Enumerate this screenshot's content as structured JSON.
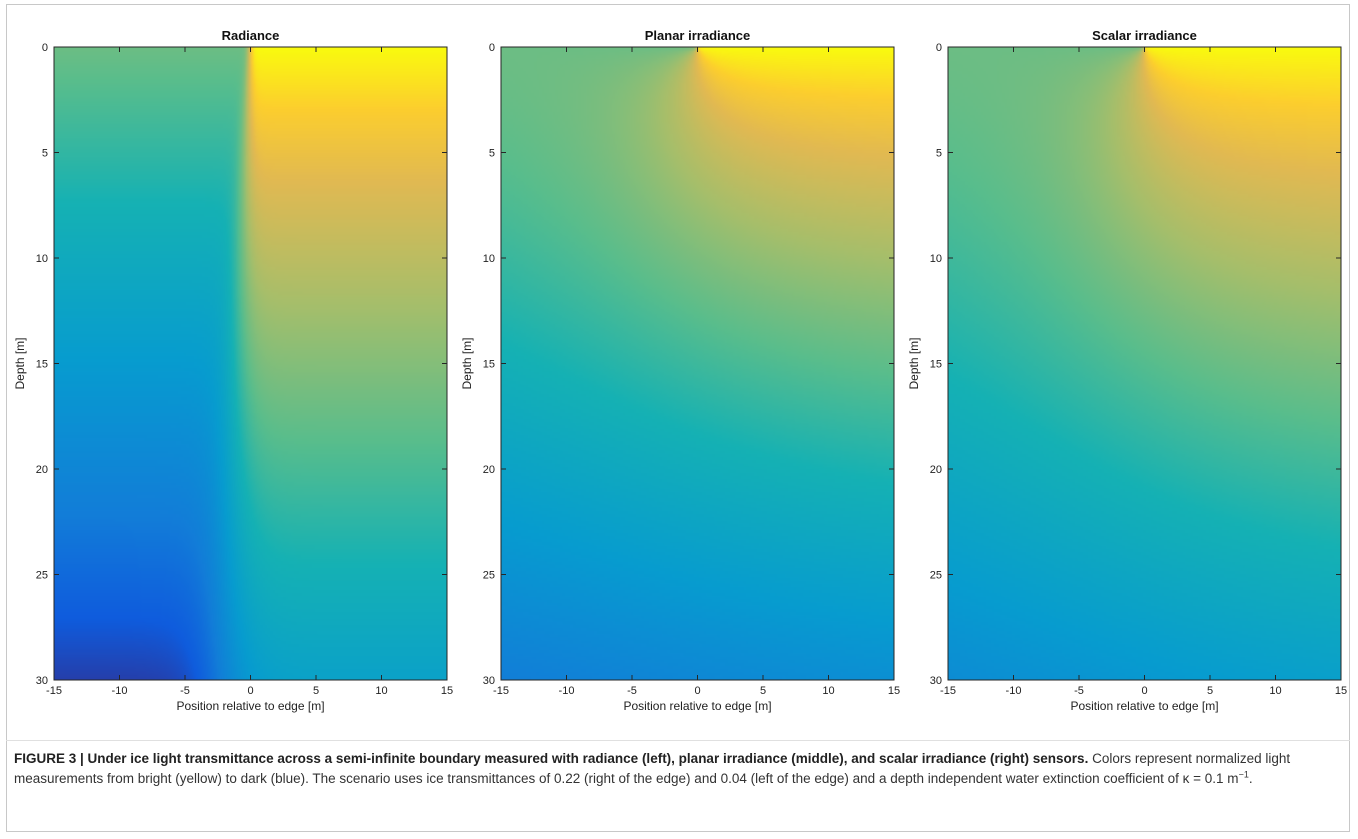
{
  "chart_data": [
    {
      "type": "heatmap",
      "title": "Radiance",
      "xlabel": "Position relative to edge [m]",
      "ylabel": "Depth [m]",
      "xlim": [
        -15,
        15
      ],
      "ylim": [
        30,
        0
      ],
      "x_ticks": [
        -15,
        -10,
        -5,
        0,
        5,
        10,
        15
      ],
      "y_ticks": [
        0,
        5,
        10,
        15,
        20,
        25,
        30
      ],
      "colormap": "parula",
      "edge_x": 0,
      "ice_transmittance_right": 0.22,
      "ice_transmittance_left": 0.04,
      "extinction_coefficient": 0.1
    },
    {
      "type": "heatmap",
      "title": "Planar irradiance",
      "xlabel": "Position relative to edge [m]",
      "ylabel": "Depth [m]",
      "xlim": [
        -15,
        15
      ],
      "ylim": [
        30,
        0
      ],
      "x_ticks": [
        -15,
        -10,
        -5,
        0,
        5,
        10,
        15
      ],
      "y_ticks": [
        0,
        5,
        10,
        15,
        20,
        25,
        30
      ],
      "colormap": "parula",
      "edge_x": 0,
      "ice_transmittance_right": 0.22,
      "ice_transmittance_left": 0.04,
      "extinction_coefficient": 0.1
    },
    {
      "type": "heatmap",
      "title": "Scalar irradiance",
      "xlabel": "Position relative to edge [m]",
      "ylabel": "Depth [m]",
      "xlim": [
        -15,
        15
      ],
      "ylim": [
        30,
        0
      ],
      "x_ticks": [
        -15,
        -10,
        -5,
        0,
        5,
        10,
        15
      ],
      "y_ticks": [
        0,
        5,
        10,
        15,
        20,
        25,
        30
      ],
      "colormap": "parula",
      "edge_x": 0,
      "ice_transmittance_right": 0.22,
      "ice_transmittance_left": 0.04,
      "extinction_coefficient": 0.1
    }
  ],
  "caption": {
    "lead": "FIGURE 3 | Under ice light transmittance across a semi-infinite boundary measured with radiance (left), planar irradiance (middle), and scalar irradiance (right) sensors.",
    "body": " Colors represent normalized light measurements from bright (yellow) to dark (blue). The scenario uses ice transmittances of 0.22 (right of the edge) and 0.04 (left of the edge) and a depth independent water extinction coefficient of κ = 0.1 m",
    "sup": "−1",
    "end": "."
  },
  "colors": {
    "parula_dark": "#352a87",
    "parula_blue": "#0f5cdd",
    "parula_teal": "#12b8ad",
    "parula_yellow": "#f9fb0e"
  }
}
